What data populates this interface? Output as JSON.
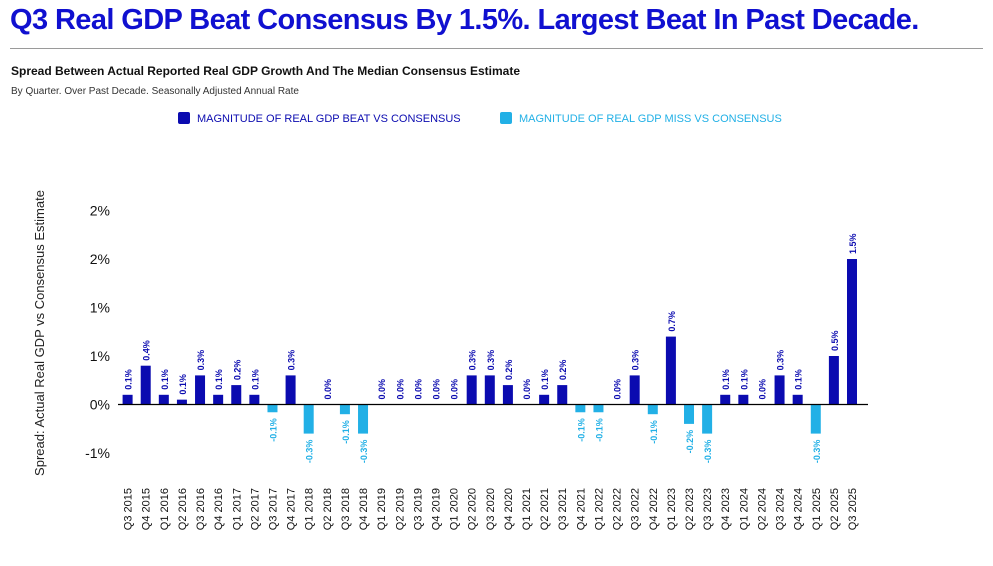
{
  "headline": "Q3 Real GDP Beat Consensus By 1.5%. Largest Beat In Past Decade.",
  "subtitle": "Spread Between Actual Reported Real GDP Growth And The Median Consensus Estimate",
  "note": "By Quarter. Over Past Decade. Seasonally Adjusted Annual Rate",
  "colors": {
    "headline": "#1010d0",
    "beat": "#0b0bb0",
    "miss": "#22b0e6",
    "axis": "#000000"
  },
  "chart_data": {
    "type": "bar",
    "ylabel": "Spread: Actual Real GDP vs Consensus Estimate",
    "xlabel": "",
    "ylim": [
      -1.1,
      2.15
    ],
    "y_ticks": [
      {
        "value": 2.0,
        "label": "2%"
      },
      {
        "value": 1.5,
        "label": "2%"
      },
      {
        "value": 1.0,
        "label": "1%"
      },
      {
        "value": 0.5,
        "label": "1%"
      },
      {
        "value": 0.0,
        "label": "0%"
      },
      {
        "value": -0.5,
        "label": "-1%"
      }
    ],
    "legend": [
      {
        "key": "beat",
        "label": "MAGNITUDE OF REAL GDP BEAT VS CONSENSUS",
        "position": "top-center"
      },
      {
        "key": "miss",
        "label": "MAGNITUDE OF REAL GDP MISS VS CONSENSUS",
        "position": "top-center"
      }
    ],
    "series": [
      {
        "name": "MAGNITUDE OF REAL GDP BEAT VS CONSENSUS",
        "key": "beat"
      },
      {
        "name": "MAGNITUDE OF REAL GDP MISS VS CONSENSUS",
        "key": "miss"
      }
    ],
    "categories": [
      "Q3 2015",
      "Q4 2015",
      "Q1 2016",
      "Q2 2016",
      "Q3 2016",
      "Q4 2016",
      "Q1 2017",
      "Q2 2017",
      "Q3 2017",
      "Q4 2017",
      "Q1 2018",
      "Q2 2018",
      "Q3 2018",
      "Q4 2018",
      "Q1 2019",
      "Q2 2019",
      "Q3 2019",
      "Q4 2019",
      "Q1 2020",
      "Q2 2020",
      "Q3 2020",
      "Q4 2020",
      "Q1 2021",
      "Q2 2021",
      "Q3 2021",
      "Q4 2021",
      "Q1 2022",
      "Q2 2022",
      "Q3 2022",
      "Q4 2022",
      "Q1 2023",
      "Q2 2023",
      "Q3 2023",
      "Q4 2023",
      "Q1 2024",
      "Q2 2024",
      "Q3 2024",
      "Q4 2024",
      "Q1 2025",
      "Q2 2025",
      "Q3 2025"
    ],
    "values": [
      0.1,
      0.4,
      0.1,
      0.05,
      0.3,
      0.1,
      0.2,
      0.1,
      -0.08,
      0.3,
      -0.3,
      0,
      -0.1,
      -0.3,
      0,
      0,
      0,
      0,
      0,
      0.3,
      0.3,
      0.2,
      0,
      0.1,
      0.2,
      -0.08,
      -0.08,
      0,
      0.3,
      -0.1,
      0.7,
      -0.2,
      -0.3,
      0.1,
      0.1,
      0,
      0.3,
      0.1,
      -0.3,
      0.5,
      1.5
    ],
    "data_labels": [
      "0.1%",
      "0.4%",
      "0.1%",
      "0.1%",
      "0.3%",
      "0.1%",
      "0.2%",
      "0.1%",
      "-0.1%",
      "0.3%",
      "-0.3%",
      "0.0%",
      "-0.1%",
      "-0.3%",
      "0.0%",
      "0.0%",
      "0.0%",
      "0.0%",
      "0.0%",
      "0.3%",
      "0.3%",
      "0.2%",
      "0.0%",
      "0.1%",
      "0.2%",
      "-0.1%",
      "-0.1%",
      "0.0%",
      "0.3%",
      "-0.1%",
      "0.7%",
      "-0.2%",
      "-0.3%",
      "0.1%",
      "0.1%",
      "0.0%",
      "0.3%",
      "0.1%",
      "-0.3%",
      "0.5%",
      "1.5%"
    ]
  }
}
